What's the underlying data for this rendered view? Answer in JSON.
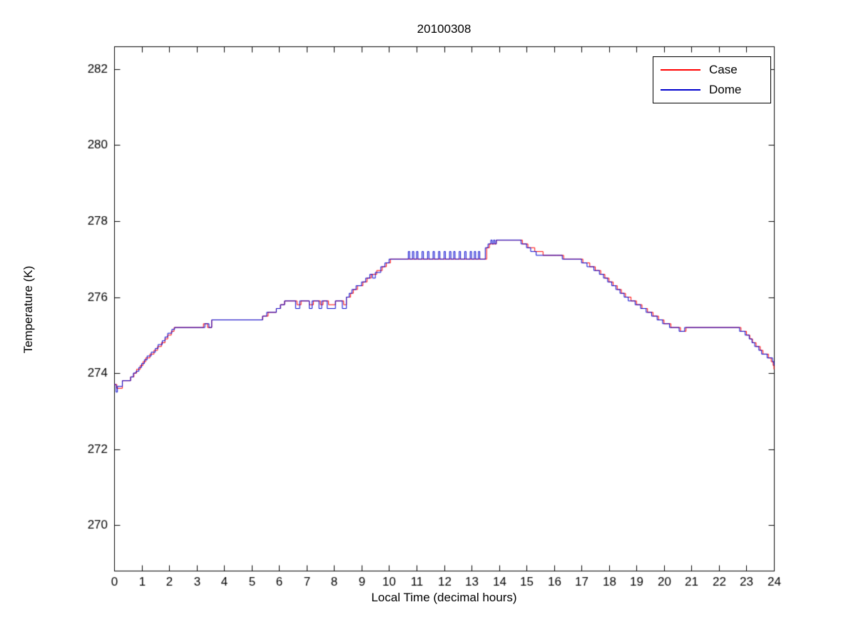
{
  "chart_data": {
    "type": "line",
    "title": "20100308",
    "xlabel": "Local Time (decimal hours)",
    "ylabel": "Temperature (K)",
    "xlim": [
      0,
      24
    ],
    "ylim": [
      268.8,
      282.6
    ],
    "xticks": [
      0,
      1,
      2,
      3,
      4,
      5,
      6,
      7,
      8,
      9,
      10,
      11,
      12,
      13,
      14,
      15,
      16,
      17,
      18,
      19,
      20,
      21,
      22,
      23,
      24
    ],
    "yticks": [
      270,
      272,
      274,
      276,
      278,
      280,
      282
    ],
    "grid": false,
    "step": true,
    "legend_position": "top-right",
    "axis_color": "#000000",
    "series": [
      {
        "name": "Case",
        "color": "#ff0000",
        "points": [
          [
            0.0,
            273.7
          ],
          [
            0.1,
            273.6
          ],
          [
            0.3,
            273.8
          ],
          [
            0.6,
            273.9
          ],
          [
            0.72,
            274.0
          ],
          [
            0.82,
            274.1
          ],
          [
            0.95,
            274.2
          ],
          [
            1.05,
            274.3
          ],
          [
            1.15,
            274.4
          ],
          [
            1.3,
            274.5
          ],
          [
            1.45,
            274.6
          ],
          [
            1.58,
            274.7
          ],
          [
            1.72,
            274.8
          ],
          [
            1.85,
            274.9
          ],
          [
            1.95,
            275.0
          ],
          [
            2.08,
            275.1
          ],
          [
            2.18,
            275.2
          ],
          [
            3.25,
            275.3
          ],
          [
            3.4,
            275.2
          ],
          [
            3.55,
            275.4
          ],
          [
            5.4,
            275.5
          ],
          [
            5.6,
            275.6
          ],
          [
            5.9,
            275.7
          ],
          [
            6.05,
            275.8
          ],
          [
            6.2,
            275.9
          ],
          [
            6.65,
            275.8
          ],
          [
            6.8,
            275.9
          ],
          [
            7.1,
            275.8
          ],
          [
            7.25,
            275.9
          ],
          [
            7.5,
            275.8
          ],
          [
            7.6,
            275.9
          ],
          [
            7.8,
            275.8
          ],
          [
            8.05,
            275.9
          ],
          [
            8.35,
            275.8
          ],
          [
            8.45,
            276.0
          ],
          [
            8.6,
            276.1
          ],
          [
            8.7,
            276.2
          ],
          [
            8.85,
            276.3
          ],
          [
            9.05,
            276.4
          ],
          [
            9.2,
            276.5
          ],
          [
            9.35,
            276.6
          ],
          [
            9.55,
            276.7
          ],
          [
            9.75,
            276.8
          ],
          [
            9.9,
            276.9
          ],
          [
            10.05,
            277.0
          ],
          [
            13.55,
            277.3
          ],
          [
            13.65,
            277.4
          ],
          [
            13.9,
            277.5
          ],
          [
            14.85,
            277.4
          ],
          [
            15.05,
            277.3
          ],
          [
            15.3,
            277.2
          ],
          [
            15.6,
            277.1
          ],
          [
            16.1,
            277.1
          ],
          [
            16.35,
            277.0
          ],
          [
            17.05,
            276.9
          ],
          [
            17.3,
            276.8
          ],
          [
            17.5,
            276.7
          ],
          [
            17.7,
            276.6
          ],
          [
            17.85,
            276.5
          ],
          [
            18.0,
            276.4
          ],
          [
            18.15,
            276.3
          ],
          [
            18.3,
            276.2
          ],
          [
            18.45,
            276.1
          ],
          [
            18.6,
            276.0
          ],
          [
            18.8,
            275.9
          ],
          [
            19.0,
            275.8
          ],
          [
            19.2,
            275.7
          ],
          [
            19.4,
            275.6
          ],
          [
            19.6,
            275.5
          ],
          [
            19.8,
            275.4
          ],
          [
            20.0,
            275.3
          ],
          [
            20.25,
            275.2
          ],
          [
            20.6,
            275.1
          ],
          [
            20.8,
            275.2
          ],
          [
            22.8,
            275.1
          ],
          [
            23.0,
            275.0
          ],
          [
            23.12,
            274.9
          ],
          [
            23.22,
            274.8
          ],
          [
            23.35,
            274.7
          ],
          [
            23.5,
            274.6
          ],
          [
            23.6,
            274.5
          ],
          [
            23.8,
            274.4
          ],
          [
            23.9,
            274.3
          ],
          [
            23.97,
            274.2
          ],
          [
            24.0,
            274.1
          ]
        ]
      },
      {
        "name": "Dome",
        "color": "#0000cd",
        "points": [
          [
            0.0,
            273.7
          ],
          [
            0.07,
            273.5
          ],
          [
            0.12,
            273.65
          ],
          [
            0.3,
            273.8
          ],
          [
            0.6,
            273.9
          ],
          [
            0.7,
            274.0
          ],
          [
            0.8,
            274.05
          ],
          [
            0.9,
            274.15
          ],
          [
            1.0,
            274.25
          ],
          [
            1.1,
            274.35
          ],
          [
            1.2,
            274.45
          ],
          [
            1.35,
            274.55
          ],
          [
            1.5,
            274.65
          ],
          [
            1.6,
            274.75
          ],
          [
            1.75,
            274.85
          ],
          [
            1.85,
            274.95
          ],
          [
            1.95,
            275.05
          ],
          [
            2.1,
            275.15
          ],
          [
            2.2,
            275.2
          ],
          [
            3.3,
            275.3
          ],
          [
            3.45,
            275.2
          ],
          [
            3.55,
            275.4
          ],
          [
            5.4,
            275.5
          ],
          [
            5.55,
            275.6
          ],
          [
            5.9,
            275.7
          ],
          [
            6.05,
            275.8
          ],
          [
            6.2,
            275.9
          ],
          [
            6.6,
            275.7
          ],
          [
            6.75,
            275.9
          ],
          [
            7.1,
            275.7
          ],
          [
            7.2,
            275.9
          ],
          [
            7.45,
            275.7
          ],
          [
            7.55,
            275.9
          ],
          [
            7.75,
            275.7
          ],
          [
            8.05,
            275.9
          ],
          [
            8.3,
            275.7
          ],
          [
            8.45,
            276.0
          ],
          [
            8.55,
            276.1
          ],
          [
            8.65,
            276.2
          ],
          [
            8.8,
            276.3
          ],
          [
            9.0,
            276.4
          ],
          [
            9.15,
            276.5
          ],
          [
            9.3,
            276.6
          ],
          [
            9.4,
            276.5
          ],
          [
            9.5,
            276.65
          ],
          [
            9.7,
            276.8
          ],
          [
            9.85,
            276.9
          ],
          [
            10.0,
            277.0
          ],
          [
            10.7,
            277.2
          ],
          [
            10.75,
            277.0
          ],
          [
            10.85,
            277.2
          ],
          [
            10.9,
            277.0
          ],
          [
            11.0,
            277.2
          ],
          [
            11.05,
            277.0
          ],
          [
            11.2,
            277.2
          ],
          [
            11.25,
            277.0
          ],
          [
            11.4,
            277.2
          ],
          [
            11.45,
            277.0
          ],
          [
            11.6,
            277.2
          ],
          [
            11.65,
            277.0
          ],
          [
            11.8,
            277.2
          ],
          [
            11.85,
            277.0
          ],
          [
            12.0,
            277.2
          ],
          [
            12.05,
            277.0
          ],
          [
            12.2,
            277.2
          ],
          [
            12.25,
            277.0
          ],
          [
            12.35,
            277.2
          ],
          [
            12.4,
            277.0
          ],
          [
            12.55,
            277.2
          ],
          [
            12.6,
            277.0
          ],
          [
            12.75,
            277.2
          ],
          [
            12.8,
            277.0
          ],
          [
            12.95,
            277.2
          ],
          [
            13.0,
            277.0
          ],
          [
            13.1,
            277.2
          ],
          [
            13.15,
            277.0
          ],
          [
            13.25,
            277.2
          ],
          [
            13.3,
            277.0
          ],
          [
            13.5,
            277.3
          ],
          [
            13.6,
            277.4
          ],
          [
            13.7,
            277.5
          ],
          [
            13.75,
            277.4
          ],
          [
            13.8,
            277.5
          ],
          [
            13.85,
            277.4
          ],
          [
            13.9,
            277.5
          ],
          [
            14.8,
            277.4
          ],
          [
            15.0,
            277.3
          ],
          [
            15.15,
            277.2
          ],
          [
            15.35,
            277.1
          ],
          [
            16.3,
            277.0
          ],
          [
            17.0,
            276.9
          ],
          [
            17.2,
            276.8
          ],
          [
            17.45,
            276.7
          ],
          [
            17.65,
            276.6
          ],
          [
            17.8,
            276.5
          ],
          [
            17.95,
            276.4
          ],
          [
            18.1,
            276.3
          ],
          [
            18.25,
            276.2
          ],
          [
            18.4,
            276.1
          ],
          [
            18.55,
            276.0
          ],
          [
            18.7,
            275.9
          ],
          [
            18.95,
            275.8
          ],
          [
            19.15,
            275.7
          ],
          [
            19.35,
            275.6
          ],
          [
            19.55,
            275.5
          ],
          [
            19.75,
            275.4
          ],
          [
            19.95,
            275.3
          ],
          [
            20.2,
            275.2
          ],
          [
            20.55,
            275.1
          ],
          [
            20.75,
            275.2
          ],
          [
            22.75,
            275.1
          ],
          [
            22.95,
            275.0
          ],
          [
            23.1,
            274.9
          ],
          [
            23.2,
            274.8
          ],
          [
            23.3,
            274.7
          ],
          [
            23.45,
            274.6
          ],
          [
            23.55,
            274.5
          ],
          [
            23.75,
            274.4
          ],
          [
            23.95,
            274.3
          ],
          [
            24.0,
            274.2
          ]
        ]
      }
    ]
  }
}
